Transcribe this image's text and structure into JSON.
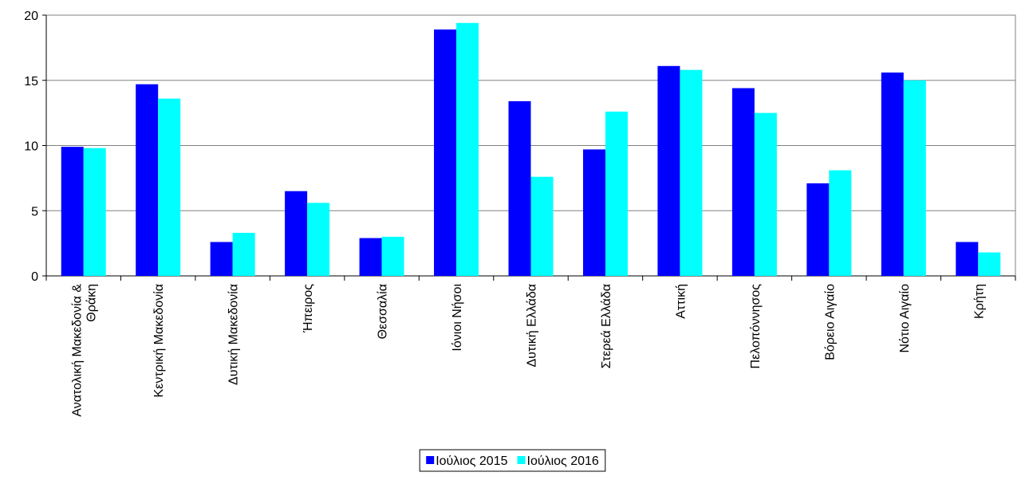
{
  "chart_data": {
    "type": "bar",
    "categories": [
      "Ανατολική Μακεδονία & Θράκη",
      "Κεντρική Μακεδονία",
      "Δυτική Μακεδονία",
      "Ήπειρος",
      "Θεσσαλία",
      "Ιόνιοι Νήσοι",
      "Δυτική Ελλάδα",
      "Στερεά Ελλάδα",
      "Αττική",
      "Πελοπόννησος",
      "Βόρειο Αιγαίο",
      "Νότιο Αιγαίο",
      "Κρήτη"
    ],
    "series": [
      {
        "name": "Ιούλιος 2015",
        "color": "#0000ff",
        "values": [
          9.9,
          14.7,
          2.6,
          6.5,
          2.9,
          18.9,
          13.4,
          9.7,
          16.1,
          14.4,
          7.1,
          15.6,
          2.6
        ]
      },
      {
        "name": "Ιούλιος 2016",
        "color": "#00ffff",
        "values": [
          9.8,
          13.6,
          3.3,
          5.6,
          3.0,
          19.4,
          7.6,
          12.6,
          15.8,
          12.5,
          8.1,
          15.0,
          1.8
        ]
      }
    ],
    "ylim": [
      0,
      20
    ],
    "yticks": [
      0,
      5,
      10,
      15,
      20
    ],
    "grid": true,
    "legend": "bottom"
  }
}
